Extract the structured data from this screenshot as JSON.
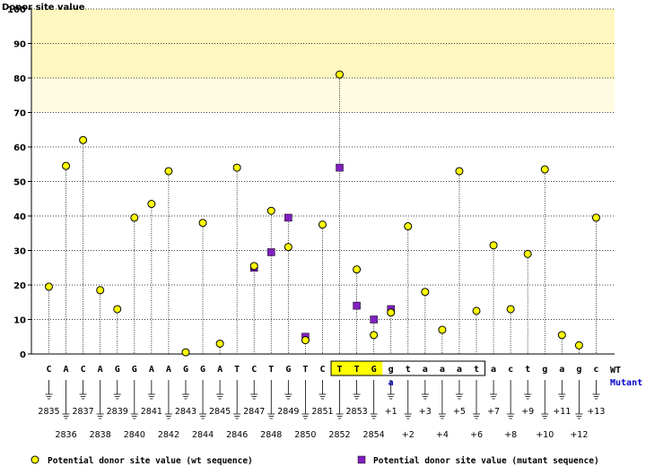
{
  "chart_data": {
    "type": "scatter",
    "ylabel": "Donor site value",
    "ylim": [
      0,
      100
    ],
    "yticks": [
      0,
      10,
      20,
      30,
      40,
      50,
      60,
      70,
      80,
      90,
      100
    ],
    "highlight_band": [
      70,
      100
    ],
    "grid": true,
    "wt_label": "WT",
    "mutant_label": "Mutant",
    "positions": [
      {
        "base": "C",
        "pos": "2835",
        "wt": 19.5,
        "mut": null,
        "box": false
      },
      {
        "base": "A",
        "pos": "2836",
        "wt": 54.5,
        "mut": null,
        "box": false
      },
      {
        "base": "C",
        "pos": "2837",
        "wt": 62,
        "mut": null,
        "box": false
      },
      {
        "base": "A",
        "pos": "2838",
        "wt": 18.5,
        "mut": null,
        "box": false
      },
      {
        "base": "G",
        "pos": "2839",
        "wt": 13,
        "mut": null,
        "box": false
      },
      {
        "base": "G",
        "pos": "2840",
        "wt": 39.5,
        "mut": null,
        "box": false
      },
      {
        "base": "A",
        "pos": "2841",
        "wt": 43.5,
        "mut": null,
        "box": false
      },
      {
        "base": "A",
        "pos": "2842",
        "wt": 53,
        "mut": null,
        "box": false
      },
      {
        "base": "G",
        "pos": "2843",
        "wt": 0.5,
        "mut": null,
        "box": false
      },
      {
        "base": "G",
        "pos": "2844",
        "wt": 38,
        "mut": null,
        "box": false
      },
      {
        "base": "A",
        "pos": "2845",
        "wt": 3,
        "mut": null,
        "box": false
      },
      {
        "base": "T",
        "pos": "2846",
        "wt": 54,
        "mut": null,
        "box": false
      },
      {
        "base": "C",
        "pos": "2847",
        "wt": 25.5,
        "mut": 25,
        "box": false
      },
      {
        "base": "T",
        "pos": "2848",
        "wt": 41.5,
        "mut": 29.5,
        "box": false
      },
      {
        "base": "G",
        "pos": "2849",
        "wt": 31,
        "mut": 39.5,
        "box": false
      },
      {
        "base": "T",
        "pos": "2850",
        "wt": 4,
        "mut": 5,
        "box": false
      },
      {
        "base": "C",
        "pos": "2851",
        "wt": 37.5,
        "mut": null,
        "box": false
      },
      {
        "base": "T",
        "pos": "2852",
        "wt": 81,
        "mut": 54,
        "box": true
      },
      {
        "base": "T",
        "pos": "2853",
        "wt": 24.5,
        "mut": 14,
        "box": true
      },
      {
        "base": "G",
        "pos": "2854",
        "wt": 5.5,
        "mut": 10,
        "box": true
      },
      {
        "base": "g",
        "pos": "+1",
        "wt": 12,
        "mut": 13,
        "box": true,
        "mut_base": "a"
      },
      {
        "base": "t",
        "pos": "+2",
        "wt": 37,
        "mut": null,
        "box": true
      },
      {
        "base": "a",
        "pos": "+3",
        "wt": 18,
        "mut": null,
        "box": true
      },
      {
        "base": "a",
        "pos": "+4",
        "wt": 7,
        "mut": null,
        "box": true
      },
      {
        "base": "a",
        "pos": "+5",
        "wt": 53,
        "mut": null,
        "box": true
      },
      {
        "base": "t",
        "pos": "+6",
        "wt": 12.5,
        "mut": null,
        "box": true
      },
      {
        "base": "a",
        "pos": "+7",
        "wt": 31.5,
        "mut": null,
        "box": false
      },
      {
        "base": "c",
        "pos": "+8",
        "wt": 13,
        "mut": null,
        "box": false
      },
      {
        "base": "t",
        "pos": "+9",
        "wt": 29,
        "mut": null,
        "box": false
      },
      {
        "base": "g",
        "pos": "+10",
        "wt": 53.5,
        "mut": null,
        "box": false
      },
      {
        "base": "a",
        "pos": "+11",
        "wt": 5.5,
        "mut": null,
        "box": false
      },
      {
        "base": "g",
        "pos": "+12",
        "wt": 2.5,
        "mut": null,
        "box": false
      },
      {
        "base": "c",
        "pos": "+13",
        "wt": 39.5,
        "mut": null,
        "box": false
      }
    ],
    "legend": {
      "wt": "Potential donor site value (wt sequence)",
      "mut": "Potential donor site value (mutant sequence)"
    },
    "colors": {
      "wt_marker": "#ffff00",
      "mut_marker": "#8020c0",
      "band": "#fffad0",
      "box_highlight": "#ffff00",
      "mutant_text": "#0000cc"
    }
  }
}
